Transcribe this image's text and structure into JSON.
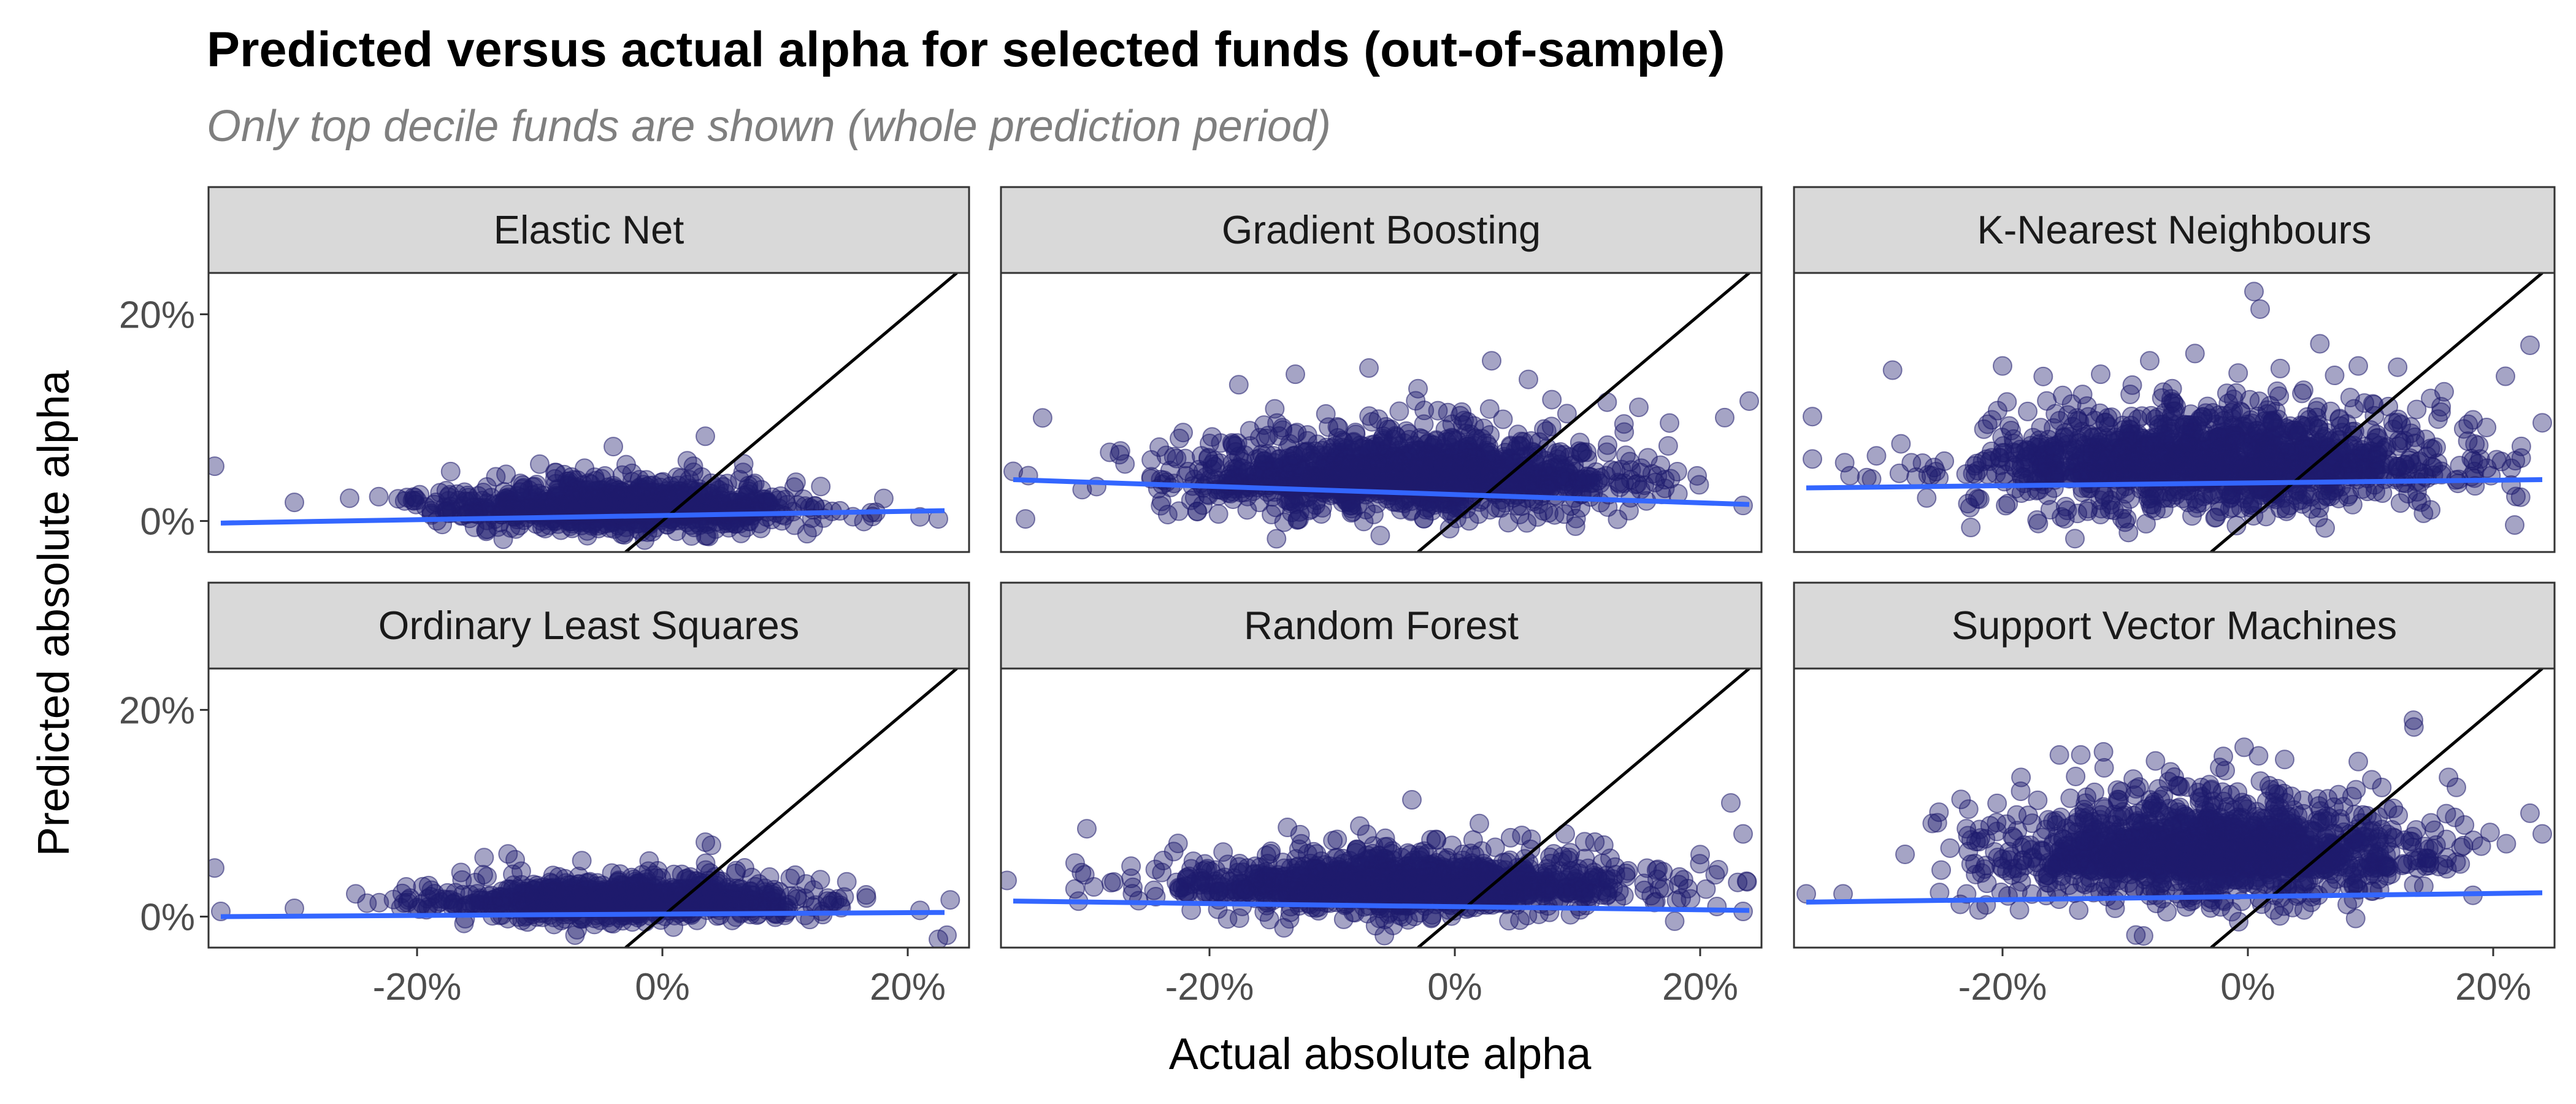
{
  "chart_data": {
    "type": "scatter",
    "title": "Predicted versus actual alpha for selected funds (out-of-sample)",
    "subtitle": "Only top decile funds are shown (whole prediction period)",
    "xlabel": "Actual absolute alpha",
    "ylabel": "Predicted absolute alpha",
    "x_ticks": [
      "-20%",
      "0%",
      "20%"
    ],
    "y_ticks": [
      "0%",
      "20%"
    ],
    "xlim": [
      -0.37,
      0.25
    ],
    "ylim": [
      -0.03,
      0.24
    ],
    "reference_line": "y = x",
    "grid": false,
    "colors": {
      "points": "#1f1b6e",
      "fit_line": "#3366ff",
      "reference_line": "#000000",
      "strip_fill": "#d9d9d9"
    },
    "panels": [
      {
        "name": "Elastic Net",
        "fit": {
          "x": [
            -0.36,
            0.23
          ],
          "y": [
            -0.002,
            0.01
          ]
        },
        "cloud": {
          "cx": -0.03,
          "cy": 0.005,
          "sx": 0.07,
          "sy": 0.018,
          "n": 1100
        },
        "points": [
          [
            -0.365,
            0.053
          ],
          [
            -0.3,
            0.018
          ],
          [
            -0.255,
            0.022
          ],
          [
            -0.2,
            0.02
          ],
          [
            -0.1,
            0.055
          ],
          [
            -0.04,
            0.072
          ],
          [
            0.035,
            0.082
          ],
          [
            0.12,
            0.013
          ],
          [
            0.17,
            0.008
          ],
          [
            0.21,
            0.004
          ],
          [
            0.225,
            0.002
          ]
        ]
      },
      {
        "name": "Gradient Boosting",
        "fit": {
          "x": [
            -0.36,
            0.24
          ],
          "y": [
            0.04,
            0.016
          ]
        },
        "cloud": {
          "cx": -0.04,
          "cy": 0.03,
          "sx": 0.09,
          "sy": 0.03,
          "n": 1400
        },
        "points": [
          [
            -0.36,
            0.048
          ],
          [
            -0.35,
            0.002
          ],
          [
            -0.2,
            0.075
          ],
          [
            -0.13,
            0.142
          ],
          [
            -0.07,
            0.148
          ],
          [
            -0.03,
            0.128
          ],
          [
            0.03,
            0.155
          ],
          [
            0.06,
            0.137
          ],
          [
            0.15,
            0.11
          ],
          [
            0.22,
            0.1
          ],
          [
            0.24,
            0.116
          ],
          [
            0.235,
            0.015
          ]
        ]
      },
      {
        "name": "K-Nearest Neighbours",
        "fit": {
          "x": [
            -0.36,
            0.24
          ],
          "y": [
            0.032,
            0.04
          ]
        },
        "cloud": {
          "cx": -0.03,
          "cy": 0.04,
          "sx": 0.09,
          "sy": 0.038,
          "n": 1500
        },
        "points": [
          [
            -0.355,
            0.101
          ],
          [
            -0.355,
            0.06
          ],
          [
            -0.2,
            0.15
          ],
          [
            -0.12,
            0.142
          ],
          [
            -0.08,
            0.155
          ],
          [
            0.005,
            0.222
          ],
          [
            0.01,
            0.205
          ],
          [
            0.09,
            0.15
          ],
          [
            0.16,
            0.125
          ],
          [
            0.21,
            0.14
          ],
          [
            0.23,
            0.17
          ],
          [
            0.24,
            0.095
          ]
        ]
      },
      {
        "name": "Ordinary Least Squares",
        "fit": {
          "x": [
            -0.36,
            0.23
          ],
          "y": [
            0.0,
            0.004
          ]
        },
        "cloud": {
          "cx": -0.03,
          "cy": 0.008,
          "sx": 0.07,
          "sy": 0.015,
          "n": 1100
        },
        "points": [
          [
            -0.365,
            0.047
          ],
          [
            -0.36,
            0.005
          ],
          [
            -0.3,
            0.008
          ],
          [
            -0.25,
            0.022
          ],
          [
            -0.12,
            0.055
          ],
          [
            0.035,
            0.072
          ],
          [
            0.04,
            0.069
          ],
          [
            0.13,
            0.005
          ],
          [
            0.21,
            0.006
          ],
          [
            0.225,
            -0.022
          ],
          [
            0.232,
            -0.018
          ]
        ]
      },
      {
        "name": "Random Forest",
        "fit": {
          "x": [
            -0.36,
            0.24
          ],
          "y": [
            0.015,
            0.006
          ]
        },
        "cloud": {
          "cx": -0.04,
          "cy": 0.02,
          "sx": 0.09,
          "sy": 0.022,
          "n": 1300
        },
        "points": [
          [
            -0.365,
            0.035
          ],
          [
            -0.3,
            0.085
          ],
          [
            -0.08,
            0.065
          ],
          [
            -0.035,
            0.113
          ],
          [
            0.02,
            0.09
          ],
          [
            0.09,
            0.08
          ],
          [
            0.2,
            0.06
          ],
          [
            0.225,
            0.11
          ],
          [
            0.235,
            0.08
          ],
          [
            0.235,
            0.005
          ]
        ]
      },
      {
        "name": "Support Vector Machines",
        "fit": {
          "x": [
            -0.36,
            0.24
          ],
          "y": [
            0.014,
            0.023
          ]
        },
        "cloud": {
          "cx": -0.03,
          "cy": 0.045,
          "sx": 0.08,
          "sy": 0.038,
          "n": 1500
        },
        "points": [
          [
            -0.36,
            0.022
          ],
          [
            -0.33,
            0.022
          ],
          [
            -0.25,
            0.045
          ],
          [
            -0.12,
            0.09
          ],
          [
            -0.06,
            0.135
          ],
          [
            -0.02,
            0.155
          ],
          [
            0.03,
            0.152
          ],
          [
            0.09,
            0.15
          ],
          [
            0.135,
            0.19
          ],
          [
            0.17,
            0.125
          ],
          [
            0.23,
            0.1
          ],
          [
            0.24,
            0.08
          ]
        ]
      }
    ]
  }
}
